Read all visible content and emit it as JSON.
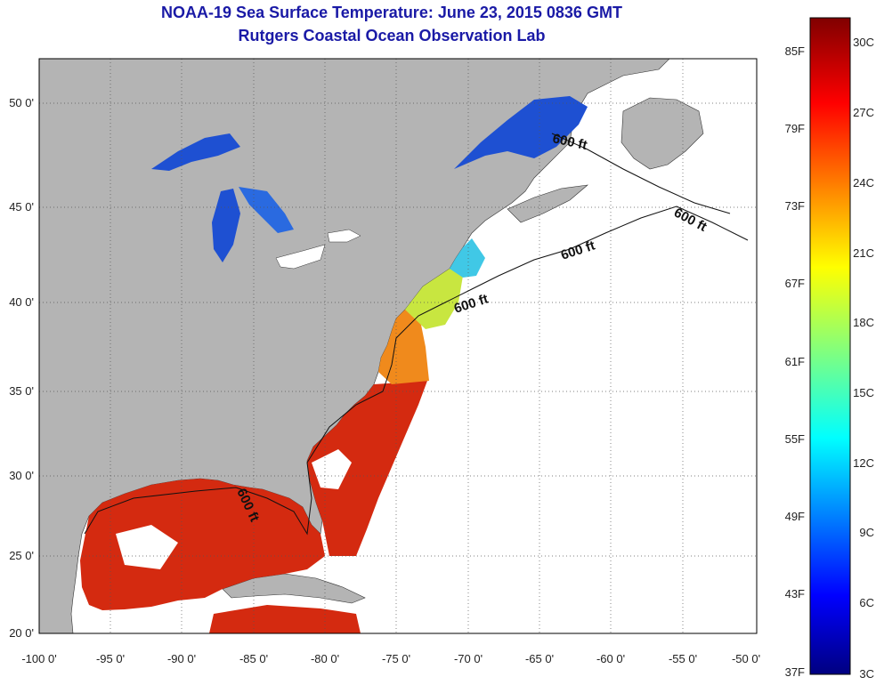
{
  "header": {
    "title": "NOAA-19 Sea Surface Temperature:  June 23, 2015 0836 GMT",
    "subtitle": "Rutgers Coastal Ocean Observation Lab"
  },
  "map": {
    "lon_labels": [
      "-100 0'",
      "-95 0'",
      "-90 0'",
      "-85 0'",
      "-80 0'",
      "-75 0'",
      "-70 0'",
      "-65 0'",
      "-60 0'",
      "-55 0'",
      "-50 0'"
    ],
    "lat_labels": [
      "50 0'",
      "45 0'",
      "40 0'",
      "35 0'",
      "30 0'",
      "25 0'",
      "20 0'"
    ],
    "contour_labels": [
      "600 ft",
      "600 ft",
      "600 ft",
      "600 ft",
      "600 ft"
    ],
    "colors": {
      "land": "#b4b4b4",
      "ocean_nodata": "#ffffff",
      "warm_sst": "#d42a10",
      "cool_sst": "#1e50d2",
      "grid": "#555555"
    }
  },
  "colorbar": {
    "fahrenheit_labels": [
      "85F",
      "79F",
      "73F",
      "67F",
      "61F",
      "55F",
      "49F",
      "43F",
      "37F"
    ],
    "celsius_labels": [
      "30C",
      "27C",
      "24C",
      "21C",
      "18C",
      "15C",
      "12C",
      "9C",
      "6C",
      "3C"
    ],
    "range_celsius": [
      3,
      31
    ],
    "range_fahrenheit": [
      37,
      88
    ]
  }
}
